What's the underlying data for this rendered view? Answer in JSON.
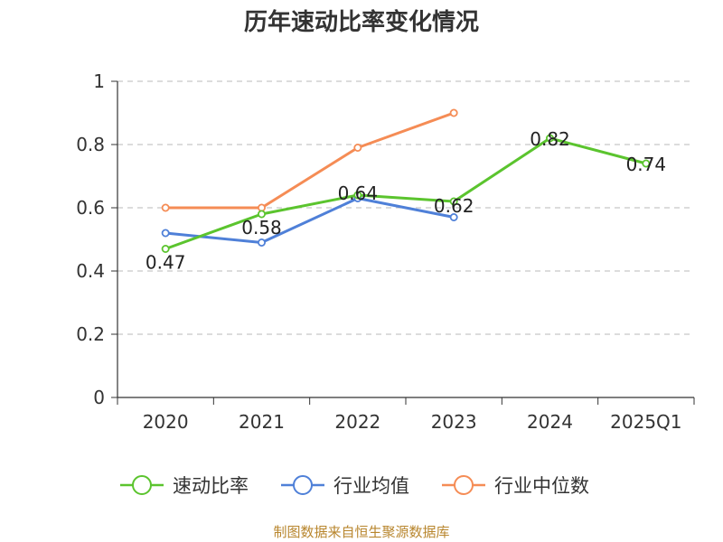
{
  "chart_data": {
    "type": "line",
    "title": "历年速动比率变化情况",
    "categories": [
      "2020",
      "2021",
      "2022",
      "2023",
      "2024",
      "2025Q1"
    ],
    "ylim": [
      0,
      1
    ],
    "yticks": [
      "0",
      "0.2",
      "0.4",
      "0.6",
      "0.8",
      "1"
    ],
    "grid": true,
    "legend_position": "bottom",
    "series": [
      {
        "name": "速动比率",
        "color": "#5bc42e",
        "values": [
          0.47,
          0.58,
          0.64,
          0.62,
          0.82,
          0.74
        ],
        "labels": [
          "0.47",
          "0.58",
          "0.64",
          "0.62",
          "0.82",
          "0.74"
        ]
      },
      {
        "name": "行业均值",
        "color": "#4f80d8",
        "values": [
          0.52,
          0.49,
          0.63,
          0.57,
          null,
          null
        ]
      },
      {
        "name": "行业中位数",
        "color": "#f58c55",
        "values": [
          0.6,
          0.6,
          0.79,
          0.9,
          null,
          null
        ]
      }
    ],
    "source": "制图数据来自恒生聚源数据库"
  }
}
